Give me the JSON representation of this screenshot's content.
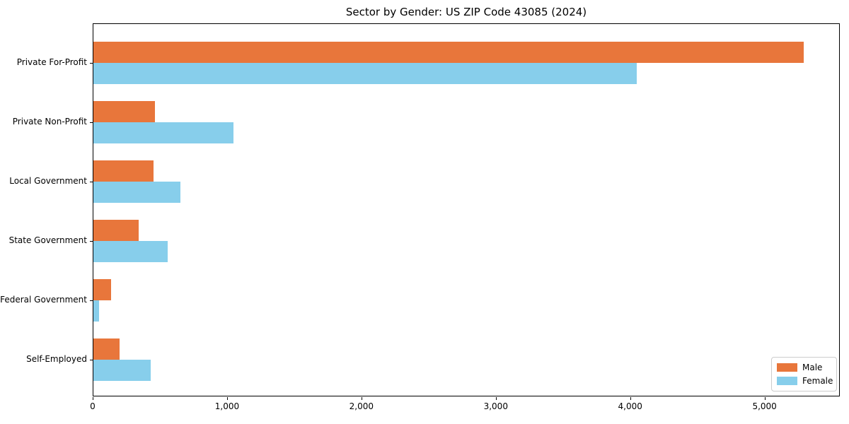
{
  "page": {
    "title": "Sector by Gender: US ZIP Code 43085 (2024)"
  },
  "chart_data": {
    "type": "bar",
    "orientation": "horizontal",
    "title": "Sector by Gender: US ZIP Code 43085 (2024)",
    "categories": [
      "Private For-Profit",
      "Private Non-Profit",
      "Local Government",
      "State Government",
      "Federal Government",
      "Self-Employed"
    ],
    "series": [
      {
        "name": "Male",
        "color": "#e8763b",
        "values": [
          5285,
          460,
          450,
          335,
          130,
          195
        ]
      },
      {
        "name": "Female",
        "color": "#87ceeb",
        "values": [
          4045,
          1045,
          645,
          555,
          40,
          425
        ]
      }
    ],
    "xlabel": "",
    "ylabel": "",
    "xlim": [
      0,
      5560
    ],
    "x_ticks": [
      0,
      1000,
      2000,
      3000,
      4000,
      5000
    ],
    "x_tick_labels": [
      "0",
      "1,000",
      "2,000",
      "3,000",
      "4,000",
      "5,000"
    ],
    "grid": false,
    "legend_position": "lower right",
    "colors": {
      "male": "#e8763b",
      "female": "#87ceeb",
      "spine": "#000000",
      "text": "#000000"
    }
  }
}
